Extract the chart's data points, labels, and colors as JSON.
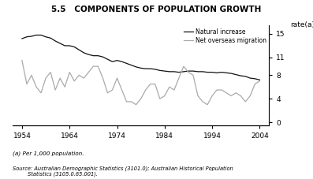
{
  "title": "5.5   COMPONENTS OF POPULATION GROWTH",
  "ylabel_right": "rate(a)",
  "footnote1": "(a) Per 1,000 population.",
  "footnote2": "Source: Australian Demographic Statistics (3101.0); Australian Historical Population\n         Statistics (3105.0.65.001).",
  "legend_labels": [
    "Natural increase",
    "Net overseas migration"
  ],
  "line_colors": [
    "#111111",
    "#aaaaaa"
  ],
  "yticks": [
    0,
    4,
    8,
    11,
    15
  ],
  "xticks": [
    1954,
    1964,
    1974,
    1984,
    1994,
    2004
  ],
  "xlim": [
    1952,
    2006
  ],
  "ylim": [
    -0.5,
    16.5
  ],
  "ni_years": [
    1954,
    1955,
    1956,
    1957,
    1958,
    1959,
    1960,
    1961,
    1962,
    1963,
    1964,
    1965,
    1966,
    1967,
    1968,
    1969,
    1970,
    1971,
    1972,
    1973,
    1974,
    1975,
    1976,
    1977,
    1978,
    1979,
    1980,
    1981,
    1982,
    1983,
    1984,
    1985,
    1986,
    1987,
    1988,
    1989,
    1990,
    1991,
    1992,
    1993,
    1994,
    1995,
    1996,
    1997,
    1998,
    1999,
    2000,
    2001,
    2002,
    2003,
    2004
  ],
  "ni_values": [
    14.2,
    14.5,
    14.6,
    14.8,
    14.8,
    14.5,
    14.3,
    13.8,
    13.4,
    13.0,
    13.0,
    12.8,
    12.3,
    11.8,
    11.5,
    11.3,
    11.3,
    11.1,
    10.7,
    10.3,
    10.5,
    10.3,
    10.0,
    9.7,
    9.4,
    9.2,
    9.1,
    9.1,
    9.0,
    8.8,
    8.7,
    8.6,
    8.6,
    8.5,
    8.6,
    8.7,
    8.7,
    8.6,
    8.6,
    8.5,
    8.5,
    8.4,
    8.5,
    8.4,
    8.3,
    8.1,
    7.9,
    7.8,
    7.5,
    7.4,
    7.2
  ],
  "nom_years": [
    1954,
    1955,
    1956,
    1957,
    1958,
    1959,
    1960,
    1961,
    1962,
    1963,
    1964,
    1965,
    1966,
    1967,
    1968,
    1969,
    1970,
    1971,
    1972,
    1973,
    1974,
    1975,
    1976,
    1977,
    1978,
    1979,
    1980,
    1981,
    1982,
    1983,
    1984,
    1985,
    1986,
    1987,
    1988,
    1989,
    1990,
    1991,
    1992,
    1993,
    1994,
    1995,
    1996,
    1997,
    1998,
    1999,
    2000,
    2001,
    2002,
    2003,
    2004
  ],
  "nom_values": [
    10.5,
    6.5,
    8.0,
    6.0,
    5.0,
    7.5,
    8.5,
    5.5,
    7.5,
    6.0,
    8.5,
    7.0,
    8.0,
    7.5,
    8.5,
    9.5,
    9.5,
    7.5,
    5.0,
    5.5,
    7.5,
    5.5,
    3.5,
    3.5,
    3.0,
    4.0,
    5.5,
    6.5,
    6.5,
    4.0,
    4.5,
    6.0,
    5.5,
    7.5,
    9.5,
    8.5,
    8.0,
    4.5,
    3.5,
    3.0,
    4.5,
    5.5,
    5.5,
    5.0,
    4.5,
    5.0,
    4.5,
    3.5,
    4.5,
    6.5,
    7.0
  ]
}
